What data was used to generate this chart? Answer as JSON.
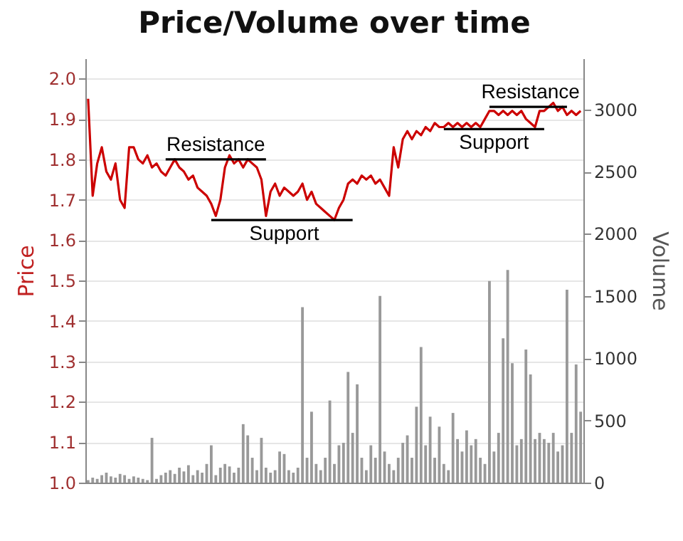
{
  "chart_data": {
    "type": "line",
    "title": "Price/Volume over time",
    "ylabel": "Price",
    "y2label": "Volume",
    "categories": [
      null,
      null,
      null,
      null,
      null,
      null,
      null,
      null,
      null,
      null,
      null,
      null,
      null,
      null,
      null,
      null,
      null,
      null,
      null,
      null,
      null,
      null,
      null,
      null,
      null,
      null,
      null,
      null,
      null,
      null,
      null,
      null,
      null,
      null,
      null,
      null,
      null,
      null,
      null,
      null,
      null,
      null,
      null,
      null,
      null,
      null,
      null,
      null,
      null,
      null,
      null,
      null,
      null,
      null,
      null,
      null,
      null,
      null,
      null,
      null,
      null,
      null,
      null,
      null,
      null,
      null,
      null,
      null,
      null,
      null,
      null,
      null,
      null,
      null,
      null,
      null,
      null,
      null,
      null,
      null,
      null,
      null,
      null,
      null,
      null,
      null,
      null,
      null,
      null,
      null,
      null,
      null,
      null,
      null,
      null,
      null,
      null,
      null,
      null,
      null,
      null,
      null,
      null,
      null,
      null,
      null,
      null,
      null,
      null
    ],
    "series": [
      {
        "type": "bar",
        "axis": "y2",
        "color": "#999999",
        "values": [
          20,
          40,
          30,
          60,
          80,
          50,
          40,
          70,
          60,
          30,
          50,
          40,
          30,
          20,
          360,
          30,
          60,
          80,
          100,
          70,
          120,
          90,
          140,
          60,
          100,
          80,
          150,
          300,
          60,
          120,
          150,
          130,
          80,
          120,
          470,
          380,
          200,
          100,
          360,
          120,
          80,
          100,
          250,
          230,
          100,
          80,
          120,
          1410,
          200,
          570,
          150,
          100,
          200,
          660,
          150,
          300,
          320,
          890,
          400,
          790,
          200,
          100,
          300,
          200,
          1500,
          250,
          150,
          100,
          200,
          320,
          380,
          200,
          610,
          1090,
          300,
          530,
          200,
          450,
          150,
          100,
          560,
          350,
          250,
          420,
          300,
          350,
          200,
          150,
          1620,
          250,
          400,
          1160,
          1710,
          960,
          300,
          350,
          1070,
          870,
          350,
          400,
          350,
          320,
          400,
          250,
          300,
          1550,
          400,
          950,
          570
        ]
      },
      {
        "color": "#cc0000",
        "values": [
          1.95,
          1.71,
          1.79,
          1.83,
          1.77,
          1.75,
          1.79,
          1.7,
          1.68,
          1.83,
          1.83,
          1.8,
          1.79,
          1.81,
          1.78,
          1.79,
          1.77,
          1.76,
          1.78,
          1.8,
          1.78,
          1.77,
          1.75,
          1.76,
          1.73,
          1.72,
          1.71,
          1.69,
          1.66,
          1.7,
          1.78,
          1.81,
          1.79,
          1.8,
          1.78,
          1.8,
          1.79,
          1.78,
          1.75,
          1.66,
          1.72,
          1.74,
          1.71,
          1.73,
          1.72,
          1.71,
          1.72,
          1.74,
          1.7,
          1.72,
          1.69,
          1.68,
          1.67,
          1.66,
          1.65,
          1.68,
          1.7,
          1.74,
          1.75,
          1.74,
          1.76,
          1.75,
          1.76,
          1.74,
          1.75,
          1.73,
          1.71,
          1.83,
          1.78,
          1.85,
          1.87,
          1.85,
          1.87,
          1.86,
          1.88,
          1.87,
          1.89,
          1.88,
          1.88,
          1.89,
          1.88,
          1.89,
          1.88,
          1.89,
          1.88,
          1.89,
          1.88,
          1.9,
          1.92,
          1.92,
          1.91,
          1.92,
          1.91,
          1.92,
          1.91,
          1.92,
          1.9,
          1.89,
          1.88,
          1.92,
          1.92,
          1.93,
          1.94,
          1.92,
          1.93,
          1.91,
          1.92,
          1.91,
          1.92
        ]
      },
      {
        "type": "line",
        "color": "#000000",
        "values": [
          null,
          null,
          null,
          null,
          null,
          null,
          null,
          null,
          null,
          null,
          null,
          null,
          null,
          null,
          null,
          null,
          null,
          1.8,
          1.8,
          1.8,
          1.8,
          1.8,
          1.8,
          1.8,
          1.8,
          1.8,
          1.8,
          1.8,
          1.8,
          1.8,
          1.8,
          1.8,
          1.8,
          1.8,
          1.8,
          1.8,
          1.8,
          1.8,
          1.8,
          1.8,
          null,
          null,
          null,
          null,
          null,
          null,
          null,
          null,
          null,
          null,
          null,
          null,
          null,
          null,
          null,
          null,
          null,
          null,
          null,
          null,
          null,
          null,
          null,
          null,
          null,
          null,
          null,
          null,
          null,
          null,
          null,
          null,
          null,
          null,
          null,
          null,
          null,
          null,
          null,
          null,
          null,
          null,
          null,
          null,
          null,
          null,
          null,
          null,
          null,
          null,
          null,
          null,
          null,
          null,
          null,
          null,
          null,
          null,
          null,
          null,
          null,
          null,
          null,
          null,
          null,
          null,
          null,
          null,
          null
        ]
      },
      {
        "type": "line",
        "color": "#000000",
        "values": [
          null,
          null,
          null,
          null,
          null,
          null,
          null,
          null,
          null,
          null,
          null,
          null,
          null,
          null,
          null,
          null,
          null,
          null,
          null,
          null,
          null,
          null,
          null,
          null,
          null,
          null,
          null,
          1.65,
          1.65,
          1.65,
          1.65,
          1.65,
          1.65,
          1.65,
          1.65,
          1.65,
          1.65,
          1.65,
          1.65,
          1.65,
          1.65,
          1.65,
          1.65,
          1.65,
          1.65,
          1.65,
          1.65,
          1.65,
          1.65,
          1.65,
          1.65,
          1.65,
          1.65,
          1.65,
          1.65,
          1.65,
          1.65,
          1.65,
          1.65,
          null,
          null,
          null,
          null,
          null,
          null,
          null,
          null,
          null,
          null,
          null,
          null,
          null,
          null,
          null,
          null,
          null,
          null,
          null,
          null,
          null,
          null,
          null,
          null,
          null,
          null,
          null,
          null,
          null,
          null,
          null,
          null,
          null,
          null,
          null,
          null,
          null,
          null,
          null,
          null,
          null,
          null,
          null,
          null,
          null,
          null,
          null,
          null,
          null,
          null
        ]
      },
      {
        "type": "line",
        "color": "#000000",
        "values": [
          null,
          null,
          null,
          null,
          null,
          null,
          null,
          null,
          null,
          null,
          null,
          null,
          null,
          null,
          null,
          null,
          null,
          null,
          null,
          null,
          null,
          null,
          null,
          null,
          null,
          null,
          null,
          null,
          null,
          null,
          null,
          null,
          null,
          null,
          null,
          null,
          null,
          null,
          null,
          null,
          null,
          null,
          null,
          null,
          null,
          null,
          null,
          null,
          null,
          null,
          null,
          null,
          null,
          null,
          null,
          null,
          null,
          null,
          null,
          null,
          null,
          null,
          null,
          null,
          null,
          null,
          null,
          null,
          null,
          null,
          null,
          null,
          null,
          null,
          null,
          null,
          null,
          null,
          1.875,
          1.875,
          1.875,
          1.875,
          1.875,
          1.875,
          1.875,
          1.875,
          1.875,
          1.875,
          1.875,
          1.875,
          1.875,
          1.875,
          1.875,
          1.875,
          1.875,
          1.875,
          1.875,
          1.875,
          1.875,
          1.875,
          1.875,
          null,
          null,
          null,
          null,
          null,
          null,
          null,
          null
        ]
      },
      {
        "type": "line",
        "color": "#000000",
        "values": [
          null,
          null,
          null,
          null,
          null,
          null,
          null,
          null,
          null,
          null,
          null,
          null,
          null,
          null,
          null,
          null,
          null,
          null,
          null,
          null,
          null,
          null,
          null,
          null,
          null,
          null,
          null,
          null,
          null,
          null,
          null,
          null,
          null,
          null,
          null,
          null,
          null,
          null,
          null,
          null,
          null,
          null,
          null,
          null,
          null,
          null,
          null,
          null,
          null,
          null,
          null,
          null,
          null,
          null,
          null,
          null,
          null,
          null,
          null,
          null,
          null,
          null,
          null,
          null,
          null,
          null,
          null,
          null,
          null,
          null,
          null,
          null,
          null,
          null,
          null,
          null,
          null,
          null,
          null,
          null,
          null,
          null,
          null,
          null,
          null,
          null,
          null,
          null,
          1.93,
          1.93,
          1.93,
          1.93,
          1.93,
          1.93,
          1.93,
          1.93,
          1.93,
          1.93,
          1.93,
          1.93,
          1.93,
          1.93,
          1.93,
          1.93,
          1.93,
          1.93,
          null,
          null,
          null
        ]
      }
    ],
    "annotations": [
      "Resistance",
      "Support",
      "Support",
      "Resistance"
    ],
    "ylim": [
      1.0,
      2.05
    ],
    "yticks": [
      {
        "value": 1.0,
        "label": "1.0"
      },
      1.1,
      1.2,
      1.3,
      1.4,
      1.5,
      1.6,
      1.7,
      1.8,
      1.9,
      {
        "value": 2.0,
        "label": "2.0"
      }
    ],
    "y2lim": [
      0,
      3410
    ],
    "y2ticks": [
      0,
      500,
      1000,
      1500,
      2000,
      2500,
      3000
    ],
    "grid": "y",
    "marker": "none",
    "line_style": "solid"
  }
}
